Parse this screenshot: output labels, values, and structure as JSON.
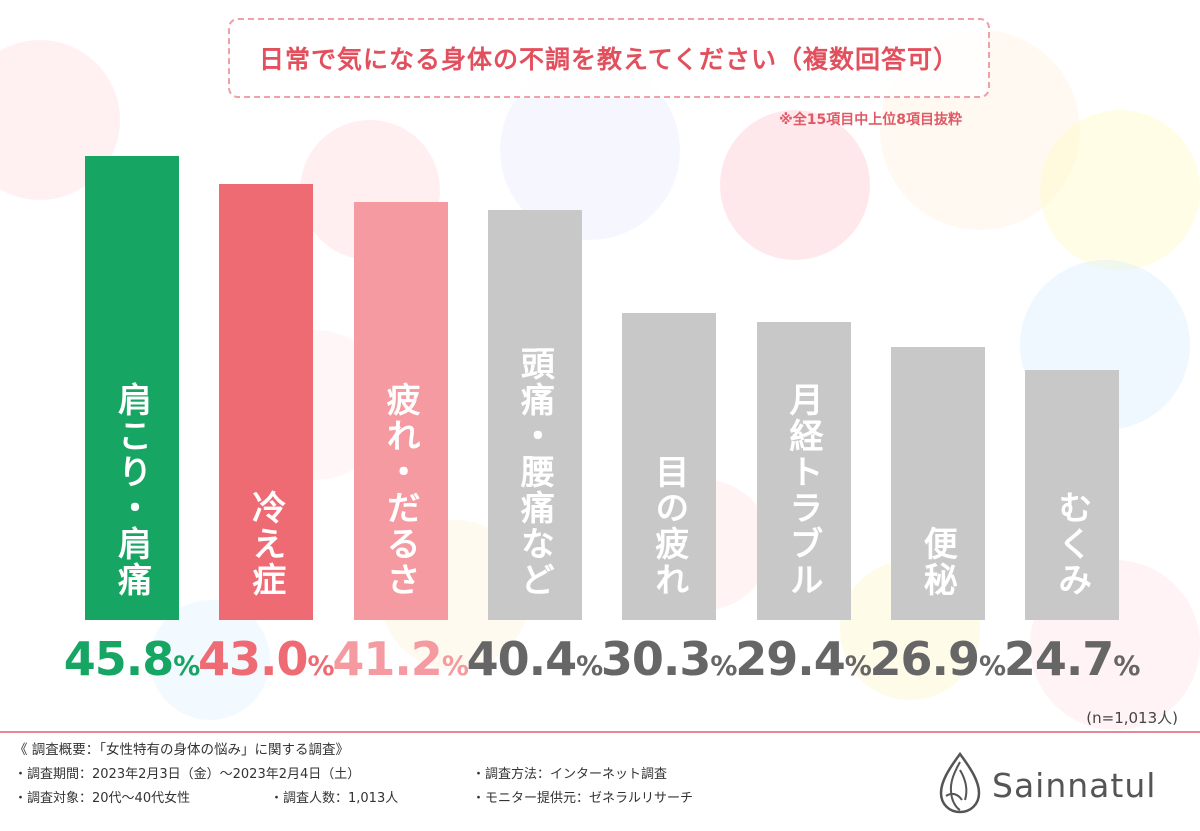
{
  "title": "日常で気になる身体の不調を教えてください（複数回答可）",
  "note": "※全15項目中上位8項目抜粋",
  "sample": "(n=1,013人)",
  "colors": {
    "highlight_green": "#16a562",
    "highlight_red": "#ef6b73",
    "highlight_pink": "#f59aa0",
    "neutral_gray": "#c8c8c8",
    "pct_gray": "#666666",
    "title_red": "#e2505e"
  },
  "chart_data": {
    "type": "bar",
    "title": "日常で気になる身体の不調を教えてください（複数回答可）",
    "unit": "%",
    "ylim": [
      0,
      50
    ],
    "grid": false,
    "categories": [
      "肩こり・肩痛",
      "冷え症",
      "疲れ・だるさ",
      "頭痛・腰痛など",
      "目の疲れ",
      "月経トラブル",
      "便秘",
      "むくみ"
    ],
    "values": [
      45.8,
      43.0,
      41.2,
      40.4,
      30.3,
      29.4,
      26.9,
      24.7
    ],
    "value_labels": [
      {
        "num": "45.8",
        "unit": "%"
      },
      {
        "num": "43.0",
        "unit": "%"
      },
      {
        "num": "41.2",
        "unit": "%"
      },
      {
        "num": "40.4",
        "unit": "%"
      },
      {
        "num": "30.3",
        "unit": "%"
      },
      {
        "num": "29.4",
        "unit": "%"
      },
      {
        "num": "26.9",
        "unit": "%"
      },
      {
        "num": "24.7",
        "unit": "%"
      }
    ],
    "bar_colors": [
      "#16a562",
      "#ef6b73",
      "#f59aa0",
      "#c8c8c8",
      "#c8c8c8",
      "#c8c8c8",
      "#c8c8c8",
      "#c8c8c8"
    ],
    "label_colors": [
      "#16a562",
      "#ef6b73",
      "#f59aa0",
      "#666666",
      "#666666",
      "#666666",
      "#666666",
      "#666666"
    ]
  },
  "footer": {
    "heading": "《 調査概要：「女性特有の身体の悩み」に関する調査》",
    "period": "・調査期間：2023年2月3日（金）～2023年2月4日（土）",
    "method": "・調査方法：インターネット調査",
    "target": "・調査対象：20代～40代女性",
    "count": "・調査人数：1,013人",
    "provider": "・モニター提供元：ゼネラルリサーチ"
  },
  "brand": {
    "name": "Sainnatul",
    "icon": "droplet-leaf-icon"
  }
}
